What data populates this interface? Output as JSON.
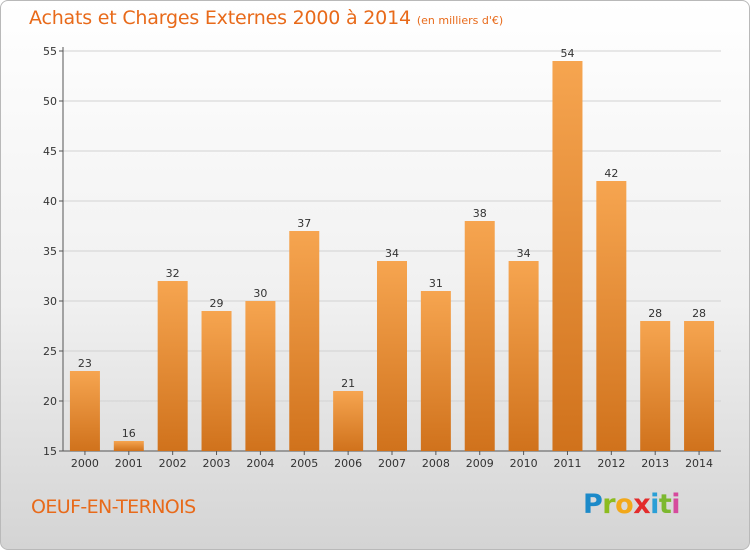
{
  "header": {
    "title": "Achats et Charges Externes 2000 à 2014",
    "subtitle": "(en milliers d'€)"
  },
  "footer": {
    "commune": "OEUF-EN-TERNOIS",
    "logo_letters": [
      "P",
      "r",
      "o",
      "x",
      "i",
      "t",
      "i"
    ]
  },
  "colors": {
    "accent": "#e86a1a",
    "bar_light": "#f6a550",
    "bar_dark": "#d0721c"
  },
  "chart_data": {
    "type": "bar",
    "title": "Achats et Charges Externes 2000 à 2014",
    "subtitle": "(en milliers d'€)",
    "categories": [
      "2000",
      "2001",
      "2002",
      "2003",
      "2004",
      "2005",
      "2006",
      "2007",
      "2008",
      "2009",
      "2010",
      "2011",
      "2012",
      "2013",
      "2014"
    ],
    "values": [
      23,
      16,
      32,
      29,
      30,
      37,
      21,
      34,
      31,
      38,
      34,
      54,
      42,
      28,
      28
    ],
    "data_labels": [
      "23",
      "16",
      "32",
      "29",
      "30",
      "37",
      "21",
      "34",
      "31",
      "38",
      "34",
      "54",
      "42",
      "28",
      "28"
    ],
    "ylim": [
      15,
      55
    ],
    "yticks": [
      15,
      20,
      25,
      30,
      35,
      40,
      45,
      50,
      55
    ],
    "ytick_labels": [
      "15",
      "20",
      "25",
      "30",
      "35",
      "40",
      "45",
      "50",
      "55"
    ],
    "grid": true
  }
}
